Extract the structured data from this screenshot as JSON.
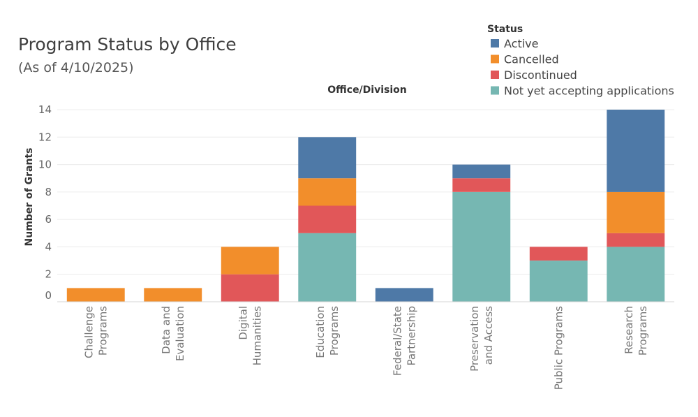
{
  "colors": {
    "Active": "#4e79a7",
    "Cancelled": "#f28e2b",
    "Discontinued": "#e15759",
    "Not yet accepting applications": "#76b7b2"
  },
  "chart_data": {
    "type": "bar",
    "stacked": true,
    "title": "Program Status by Office",
    "subtitle": "(As of 4/10/2025)",
    "column_header": "Office/Division",
    "xlabel": "",
    "ylabel": "Number of Grants",
    "ylim": [
      0,
      14
    ],
    "yticks": [
      0,
      2,
      4,
      6,
      8,
      10,
      12,
      14
    ],
    "grid": true,
    "legend": {
      "title": "Status",
      "position": "top-right",
      "entries": [
        "Active",
        "Cancelled",
        "Discontinued",
        "Not yet accepting applications"
      ]
    },
    "categories": [
      [
        "Challenge",
        "Programs"
      ],
      [
        "Data and",
        "Evaluation"
      ],
      [
        "Digital",
        "Humanities"
      ],
      [
        "Education",
        "Programs"
      ],
      [
        "Federal/State",
        "Partnership"
      ],
      [
        "Preservation",
        "and Access"
      ],
      [
        "Public Programs"
      ],
      [
        "Research",
        "Programs"
      ]
    ],
    "series": [
      {
        "name": "Not yet accepting applications",
        "values": [
          0,
          0,
          0,
          5,
          0,
          8,
          3,
          4
        ]
      },
      {
        "name": "Discontinued",
        "values": [
          0,
          0,
          2,
          2,
          0,
          1,
          1,
          1
        ]
      },
      {
        "name": "Cancelled",
        "values": [
          1,
          1,
          2,
          2,
          0,
          0,
          0,
          3
        ]
      },
      {
        "name": "Active",
        "values": [
          0,
          0,
          0,
          3,
          1,
          1,
          0,
          6
        ]
      }
    ]
  }
}
